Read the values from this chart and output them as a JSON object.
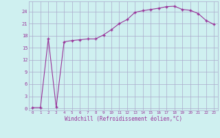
{
  "x": [
    0,
    1,
    2,
    3,
    4,
    5,
    6,
    7,
    8,
    9,
    10,
    11,
    12,
    13,
    14,
    15,
    16,
    17,
    18,
    19,
    20,
    21,
    22,
    23
  ],
  "y": [
    0.2,
    0.2,
    17.3,
    0.3,
    16.5,
    16.8,
    17.0,
    17.2,
    17.2,
    18.2,
    19.5,
    21.0,
    22.0,
    23.8,
    24.2,
    24.5,
    24.8,
    25.2,
    25.3,
    24.5,
    24.3,
    23.5,
    21.8,
    20.8
  ],
  "line_color": "#993399",
  "marker_color": "#993399",
  "bg_color": "#cff0f0",
  "grid_color": "#aaaacc",
  "xlabel": "Windchill (Refroidissement éolien,°C)",
  "xlabel_color": "#993399",
  "ylabel_ticks": [
    0,
    3,
    6,
    9,
    12,
    15,
    18,
    21,
    24
  ],
  "xtick_labels": [
    "0",
    "1",
    "2",
    "3",
    "4",
    "5",
    "6",
    "7",
    "8",
    "9",
    "10",
    "11",
    "12",
    "13",
    "14",
    "15",
    "16",
    "17",
    "18",
    "19",
    "20",
    "21",
    "22",
    "23"
  ],
  "ylim": [
    -0.5,
    26.5
  ],
  "xlim": [
    -0.5,
    23.5
  ],
  "tick_color": "#993399",
  "font_color": "#993399"
}
